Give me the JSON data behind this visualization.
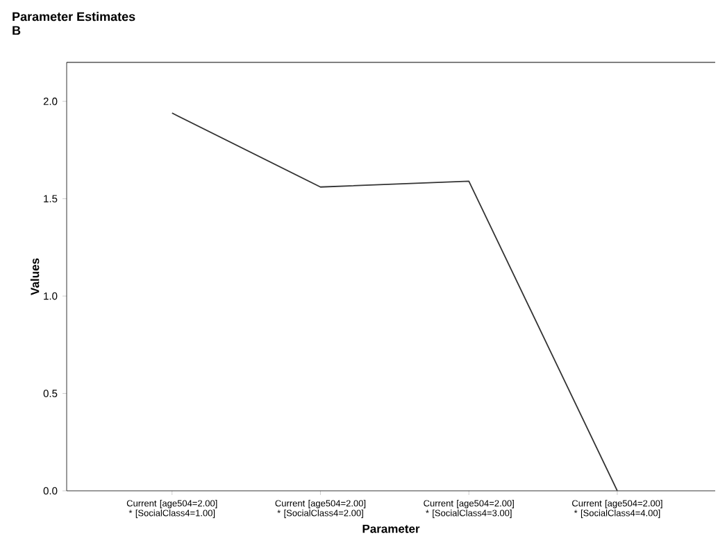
{
  "chart_data": {
    "type": "line",
    "title": "Parameter Estimates",
    "subtitle": "B",
    "xlabel": "Parameter",
    "ylabel": "Values",
    "categories": [
      "Current [age504=2.00] * [SocialClass4=1.00]",
      "Current [age504=2.00] * [SocialClass4=2.00]",
      "Current [age504=2.00] * [SocialClass4=3.00]",
      "Current [age504=2.00] * [SocialClass4=4.00]"
    ],
    "series": [
      {
        "color": "#333333",
        "values": [
          1.94,
          1.56,
          1.59,
          0.0
        ]
      }
    ],
    "ylim": [
      0,
      2.2
    ],
    "yticks": [
      {
        "value": 0,
        "label": "0.0"
      },
      {
        "value": 0.5,
        "label": "0.5"
      },
      {
        "value": 1,
        "label": "1.0"
      },
      {
        "value": 1.5,
        "label": "1.5"
      },
      {
        "value": 2,
        "label": "2.0"
      }
    ],
    "grid": false,
    "marker": "none",
    "line_style": "solid"
  }
}
